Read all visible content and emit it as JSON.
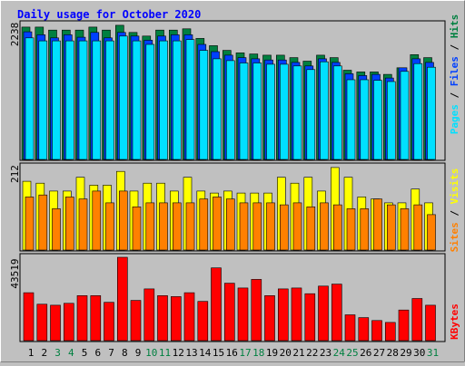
{
  "colors": {
    "background": "#c0c0c0",
    "panel": "#c0c0c0",
    "hits": "#008040",
    "files": "#0040ff",
    "pages": "#00e0ff",
    "visits": "#ffff00",
    "sites": "#ff8000",
    "kbytes": "#ff0000",
    "title": "#0000ff",
    "weekend_day": "#008040",
    "weekday": "#000000"
  },
  "chart_data": [
    {
      "type": "bar",
      "title": "Daily usage for October 2020",
      "ylabel_parts": [
        "Pages",
        "Files",
        "Hits"
      ],
      "ymax_label": "2238",
      "categories": [
        "1",
        "2",
        "3",
        "4",
        "5",
        "6",
        "7",
        "8",
        "9",
        "10",
        "11",
        "12",
        "13",
        "14",
        "15",
        "16",
        "17",
        "18",
        "19",
        "20",
        "21",
        "22",
        "23",
        "24",
        "25",
        "26",
        "27",
        "28",
        "29",
        "30",
        "31"
      ],
      "weekend_days": [
        "3",
        "4",
        "10",
        "11",
        "17",
        "18",
        "24",
        "25",
        "31"
      ],
      "ylim": [
        0,
        2238
      ],
      "series": [
        {
          "name": "Hits",
          "values": [
            2210,
            2210,
            2160,
            2160,
            2160,
            2210,
            2160,
            2240,
            2120,
            2060,
            2160,
            2160,
            2180,
            2020,
            1900,
            1820,
            1780,
            1760,
            1740,
            1740,
            1700,
            1640,
            1740,
            1700,
            1490,
            1460,
            1460,
            1420,
            1530,
            1750,
            1700
          ]
        },
        {
          "name": "Files",
          "values": [
            2130,
            2080,
            2030,
            2080,
            2040,
            2120,
            2030,
            2120,
            2060,
            1990,
            2060,
            2080,
            2080,
            1920,
            1800,
            1740,
            1700,
            1680,
            1660,
            1660,
            1620,
            1560,
            1680,
            1620,
            1430,
            1400,
            1420,
            1360,
            1530,
            1680,
            1620
          ]
        },
        {
          "name": "Pages",
          "values": [
            2030,
            1980,
            1980,
            1980,
            1980,
            1980,
            1980,
            2060,
            1980,
            1920,
            1980,
            1980,
            2000,
            1820,
            1680,
            1650,
            1610,
            1610,
            1590,
            1590,
            1560,
            1500,
            1630,
            1560,
            1330,
            1330,
            1320,
            1300,
            1470,
            1600,
            1540
          ]
        }
      ]
    },
    {
      "type": "bar",
      "ylabel_parts": [
        "Sites",
        "Visits"
      ],
      "ymax_label": "212",
      "categories": [
        "1",
        "2",
        "3",
        "4",
        "5",
        "6",
        "7",
        "8",
        "9",
        "10",
        "11",
        "12",
        "13",
        "14",
        "15",
        "16",
        "17",
        "18",
        "19",
        "20",
        "21",
        "22",
        "23",
        "24",
        "25",
        "26",
        "27",
        "28",
        "29",
        "30",
        "31"
      ],
      "ylim": [
        0,
        212
      ],
      "series": [
        {
          "name": "Visits",
          "values": [
            175,
            170,
            150,
            150,
            185,
            165,
            165,
            200,
            150,
            170,
            170,
            150,
            185,
            150,
            145,
            150,
            145,
            145,
            145,
            185,
            170,
            185,
            150,
            210,
            185,
            135,
            130,
            120,
            120,
            155,
            120
          ]
        },
        {
          "name": "Sites",
          "values": [
            135,
            140,
            105,
            135,
            130,
            150,
            120,
            150,
            110,
            120,
            120,
            120,
            120,
            130,
            135,
            130,
            120,
            120,
            120,
            115,
            120,
            110,
            120,
            115,
            105,
            105,
            130,
            115,
            105,
            115,
            90
          ]
        }
      ]
    },
    {
      "type": "bar",
      "ylabel_parts": [
        "KBytes"
      ],
      "ymax_label": "43519",
      "categories": [
        "1",
        "2",
        "3",
        "4",
        "5",
        "6",
        "7",
        "8",
        "9",
        "10",
        "11",
        "12",
        "13",
        "14",
        "15",
        "16",
        "17",
        "18",
        "19",
        "20",
        "21",
        "22",
        "23",
        "24",
        "25",
        "26",
        "27",
        "28",
        "29",
        "30",
        "31"
      ],
      "ylim": [
        0,
        43519
      ],
      "series": [
        {
          "name": "KBytes",
          "values": [
            25000,
            19000,
            18500,
            19500,
            23500,
            23500,
            20000,
            43519,
            21000,
            27000,
            23500,
            23000,
            25000,
            20500,
            38000,
            30000,
            27500,
            32000,
            23500,
            27000,
            27500,
            24500,
            28500,
            29500,
            13500,
            12000,
            10500,
            9500,
            16000,
            22000,
            18500
          ]
        }
      ]
    }
  ]
}
